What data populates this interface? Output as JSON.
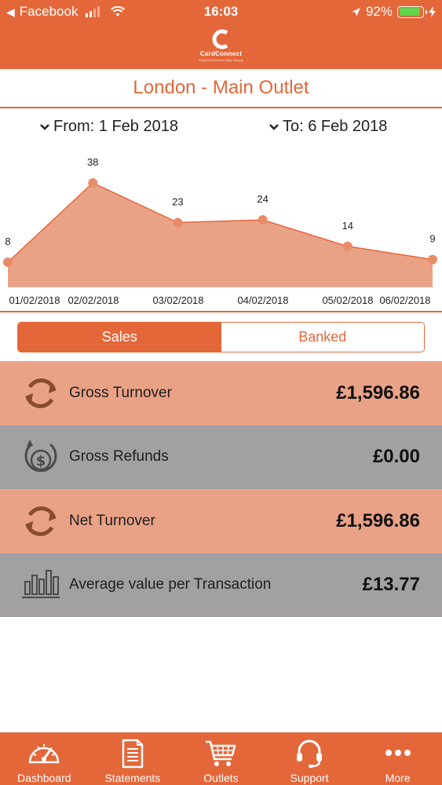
{
  "status_bar": {
    "back_app": "Facebook",
    "time": "16:03",
    "battery": "92%"
  },
  "brand": {
    "name": "CardConnect",
    "tagline": "Payment Services Made Simple"
  },
  "outlet": {
    "title": "London - Main Outlet"
  },
  "date_range": {
    "from_label": "From: 1 Feb 2018",
    "to_label": "To: 6 Feb 2018"
  },
  "chart_data": {
    "type": "area",
    "categories": [
      "01/02/2018",
      "02/02/2018",
      "03/02/2018",
      "04/02/2018",
      "05/02/2018",
      "06/02/2018"
    ],
    "values": [
      8,
      38,
      23,
      24,
      14,
      9
    ],
    "ylim": [
      0,
      38
    ],
    "grid": false,
    "data_labels": true,
    "fill_color": "#eaa287",
    "line_color": "#e4673a",
    "point_color": "#e88c68"
  },
  "segmented": {
    "options": [
      {
        "label": "Sales",
        "active": true
      },
      {
        "label": "Banked",
        "active": false
      }
    ]
  },
  "summary_rows": [
    {
      "label": "Gross Turnover",
      "value": "£1,596.86",
      "icon": "circular-arrows-icon"
    },
    {
      "label": "Gross Refunds",
      "value": "£0.00",
      "icon": "dollar-refund-icon"
    },
    {
      "label": "Net Turnover",
      "value": "£1,596.86",
      "icon": "circular-arrows-icon"
    },
    {
      "label": "Average value per Transaction",
      "value": "£13.77",
      "icon": "bar-chart-icon"
    }
  ],
  "tabs": [
    {
      "label": "Dashboard",
      "icon": "speedometer-icon"
    },
    {
      "label": "Statements",
      "icon": "document-icon"
    },
    {
      "label": "Outlets",
      "icon": "cart-icon"
    },
    {
      "label": "Support",
      "icon": "headset-icon"
    },
    {
      "label": "More",
      "icon": "ellipsis-icon"
    }
  ],
  "colors": {
    "brand_orange": "#e4673a",
    "row_peach": "#eaa287",
    "row_grey": "#a3a0a1",
    "icon_dark": "#555555",
    "icon_brown": "#8a4a2f"
  }
}
